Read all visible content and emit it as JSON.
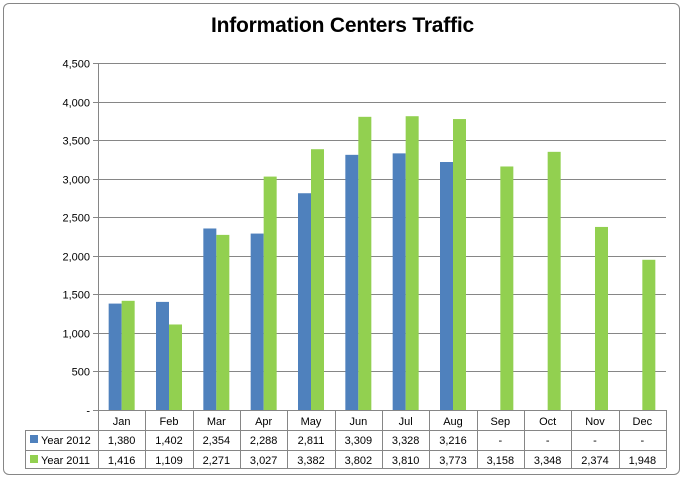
{
  "colors": {
    "series_2012": "#4F81BD",
    "series_2011": "#92D050",
    "gridline": "#868686",
    "table_border": "#868686"
  },
  "chart_data": {
    "type": "bar",
    "title": "Information Centers Traffic",
    "xlabel": "",
    "ylabel": "",
    "ylim": [
      0,
      4500
    ],
    "y_ticks": [
      0,
      500,
      1000,
      1500,
      2000,
      2500,
      3000,
      3500,
      4000,
      4500
    ],
    "y_tick_labels": [
      "-",
      "500",
      "1,000",
      "1,500",
      "2,000",
      "2,500",
      "3,000",
      "3,500",
      "4,000",
      "4,500"
    ],
    "grid": true,
    "legend": "data-table",
    "categories": [
      "Jan",
      "Feb",
      "Mar",
      "Apr",
      "May",
      "Jun",
      "Jul",
      "Aug",
      "Sep",
      "Oct",
      "Nov",
      "Dec"
    ],
    "series": [
      {
        "name": "Year 2012",
        "values": [
          1380,
          1402,
          2354,
          2288,
          2811,
          3309,
          3328,
          3216,
          null,
          null,
          null,
          null
        ],
        "table_labels": [
          "1,380",
          "1,402",
          "2,354",
          "2,288",
          "2,811",
          "3,309",
          "3,328",
          "3,216",
          "-",
          "-",
          "-",
          "-"
        ]
      },
      {
        "name": "Year 2011",
        "values": [
          1416,
          1109,
          2271,
          3027,
          3382,
          3802,
          3810,
          3773,
          3158,
          3348,
          2374,
          1948
        ],
        "table_labels": [
          "1,416",
          "1,109",
          "2,271",
          "3,027",
          "3,382",
          "3,802",
          "3,810",
          "3,773",
          "3,158",
          "3,348",
          "2,374",
          "1,948"
        ]
      }
    ]
  }
}
